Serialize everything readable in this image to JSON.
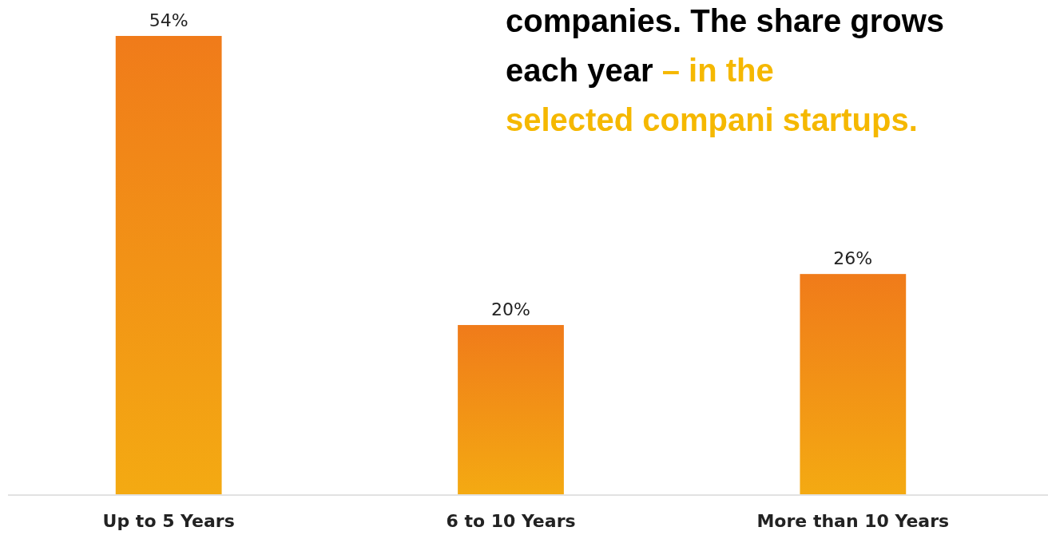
{
  "chart_data": {
    "type": "bar",
    "categories": [
      "Up to 5 Years",
      "6 to 10 Years",
      "More than 10 Years"
    ],
    "values": [
      54,
      20,
      26
    ],
    "value_labels": [
      "54%",
      "20%",
      "26%"
    ],
    "color": "#f29418",
    "annotations": [
      "companies. The share grows each year",
      "– in the selected compani startups."
    ]
  }
}
